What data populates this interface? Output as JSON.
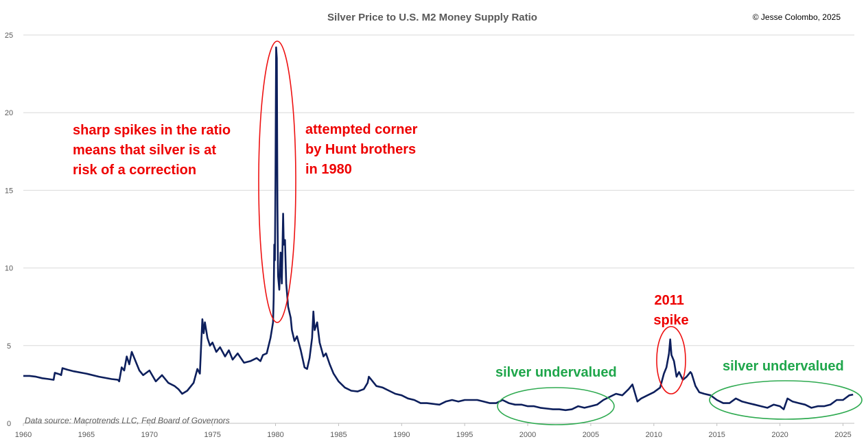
{
  "chart_data": {
    "type": "line",
    "title": "Silver Price to U.S. M2 Money Supply Ratio",
    "copyright": "© Jesse Colombo, 2025",
    "source": "Data source: Macrotrends LLC, Fed Board of Governors",
    "xlabel": "",
    "ylabel": "",
    "xlim": [
      1960,
      2025.9
    ],
    "ylim": [
      0,
      25
    ],
    "x_ticks": [
      "1960",
      "1965",
      "1970",
      "1975",
      "1980",
      "1985",
      "1990",
      "1995",
      "2000",
      "2005",
      "2010",
      "2015",
      "2020",
      "2025"
    ],
    "y_ticks": [
      "0",
      "5",
      "10",
      "15",
      "20",
      "25"
    ],
    "grid": true,
    "legend": "none",
    "line_color": "#0d1f5c",
    "series": [
      {
        "name": "Silver/M2 ratio",
        "points": [
          [
            1960.0,
            3.05
          ],
          [
            1960.5,
            3.05
          ],
          [
            1961.0,
            3.0
          ],
          [
            1961.5,
            2.9
          ],
          [
            1962.0,
            2.85
          ],
          [
            1962.4,
            2.8
          ],
          [
            1962.5,
            3.25
          ],
          [
            1962.9,
            3.15
          ],
          [
            1963.0,
            3.1
          ],
          [
            1963.1,
            3.55
          ],
          [
            1963.5,
            3.45
          ],
          [
            1964.0,
            3.35
          ],
          [
            1965.0,
            3.2
          ],
          [
            1966.0,
            3.0
          ],
          [
            1967.0,
            2.85
          ],
          [
            1967.5,
            2.8
          ],
          [
            1967.6,
            2.7
          ],
          [
            1967.8,
            3.6
          ],
          [
            1968.0,
            3.4
          ],
          [
            1968.2,
            4.3
          ],
          [
            1968.4,
            3.8
          ],
          [
            1968.6,
            4.6
          ],
          [
            1968.8,
            4.2
          ],
          [
            1969.0,
            3.8
          ],
          [
            1969.2,
            3.4
          ],
          [
            1969.5,
            3.1
          ],
          [
            1970.0,
            3.4
          ],
          [
            1970.5,
            2.7
          ],
          [
            1971.0,
            3.1
          ],
          [
            1971.5,
            2.6
          ],
          [
            1972.0,
            2.4
          ],
          [
            1972.3,
            2.2
          ],
          [
            1972.6,
            1.9
          ],
          [
            1973.0,
            2.1
          ],
          [
            1973.5,
            2.6
          ],
          [
            1973.8,
            3.5
          ],
          [
            1974.0,
            3.2
          ],
          [
            1974.1,
            5.0
          ],
          [
            1974.2,
            6.7
          ],
          [
            1974.3,
            5.8
          ],
          [
            1974.4,
            6.5
          ],
          [
            1974.6,
            5.5
          ],
          [
            1974.8,
            5.0
          ],
          [
            1975.0,
            5.2
          ],
          [
            1975.3,
            4.6
          ],
          [
            1975.6,
            4.9
          ],
          [
            1976.0,
            4.3
          ],
          [
            1976.3,
            4.7
          ],
          [
            1976.6,
            4.1
          ],
          [
            1977.0,
            4.5
          ],
          [
            1977.5,
            3.9
          ],
          [
            1978.0,
            4.0
          ],
          [
            1978.5,
            4.2
          ],
          [
            1978.8,
            4.0
          ],
          [
            1979.0,
            4.4
          ],
          [
            1979.3,
            4.5
          ],
          [
            1979.6,
            5.5
          ],
          [
            1979.8,
            6.5
          ],
          [
            1979.85,
            8.0
          ],
          [
            1979.9,
            11.5
          ],
          [
            1979.95,
            10.5
          ],
          [
            1980.0,
            16.0
          ],
          [
            1980.05,
            24.2
          ],
          [
            1980.1,
            23.5
          ],
          [
            1980.15,
            14.0
          ],
          [
            1980.2,
            9.5
          ],
          [
            1980.3,
            8.6
          ],
          [
            1980.4,
            11.0
          ],
          [
            1980.5,
            9.0
          ],
          [
            1980.6,
            13.5
          ],
          [
            1980.65,
            11.5
          ],
          [
            1980.75,
            11.8
          ],
          [
            1980.85,
            9.0
          ],
          [
            1981.0,
            7.5
          ],
          [
            1981.2,
            6.8
          ],
          [
            1981.3,
            6.0
          ],
          [
            1981.5,
            5.3
          ],
          [
            1981.7,
            5.6
          ],
          [
            1982.0,
            4.7
          ],
          [
            1982.3,
            3.6
          ],
          [
            1982.5,
            3.5
          ],
          [
            1982.7,
            4.2
          ],
          [
            1982.9,
            5.5
          ],
          [
            1983.0,
            7.2
          ],
          [
            1983.1,
            6.0
          ],
          [
            1983.3,
            6.5
          ],
          [
            1983.5,
            5.2
          ],
          [
            1983.8,
            4.3
          ],
          [
            1984.0,
            4.5
          ],
          [
            1984.3,
            3.8
          ],
          [
            1984.6,
            3.2
          ],
          [
            1985.0,
            2.7
          ],
          [
            1985.5,
            2.3
          ],
          [
            1986.0,
            2.1
          ],
          [
            1986.5,
            2.05
          ],
          [
            1987.0,
            2.2
          ],
          [
            1987.3,
            2.6
          ],
          [
            1987.4,
            3.0
          ],
          [
            1987.6,
            2.8
          ],
          [
            1988.0,
            2.4
          ],
          [
            1988.5,
            2.3
          ],
          [
            1989.0,
            2.1
          ],
          [
            1989.5,
            1.9
          ],
          [
            1990.0,
            1.8
          ],
          [
            1990.5,
            1.6
          ],
          [
            1991.0,
            1.5
          ],
          [
            1991.5,
            1.3
          ],
          [
            1992.0,
            1.3
          ],
          [
            1992.5,
            1.25
          ],
          [
            1993.0,
            1.2
          ],
          [
            1993.5,
            1.4
          ],
          [
            1994.0,
            1.5
          ],
          [
            1994.5,
            1.4
          ],
          [
            1995.0,
            1.5
          ],
          [
            1995.5,
            1.5
          ],
          [
            1996.0,
            1.5
          ],
          [
            1996.5,
            1.4
          ],
          [
            1997.0,
            1.3
          ],
          [
            1997.5,
            1.3
          ],
          [
            1998.0,
            1.5
          ],
          [
            1998.5,
            1.3
          ],
          [
            1999.0,
            1.2
          ],
          [
            1999.5,
            1.2
          ],
          [
            2000.0,
            1.1
          ],
          [
            2000.5,
            1.1
          ],
          [
            2001.0,
            1.0
          ],
          [
            2001.5,
            0.95
          ],
          [
            2002.0,
            0.9
          ],
          [
            2002.5,
            0.9
          ],
          [
            2003.0,
            0.85
          ],
          [
            2003.5,
            0.9
          ],
          [
            2004.0,
            1.1
          ],
          [
            2004.5,
            1.0
          ],
          [
            2005.0,
            1.1
          ],
          [
            2005.5,
            1.2
          ],
          [
            2006.0,
            1.5
          ],
          [
            2006.5,
            1.7
          ],
          [
            2007.0,
            1.9
          ],
          [
            2007.5,
            1.8
          ],
          [
            2008.0,
            2.2
          ],
          [
            2008.3,
            2.5
          ],
          [
            2008.7,
            1.4
          ],
          [
            2009.0,
            1.6
          ],
          [
            2009.5,
            1.8
          ],
          [
            2010.0,
            2.0
          ],
          [
            2010.5,
            2.3
          ],
          [
            2010.8,
            3.2
          ],
          [
            2011.0,
            3.6
          ],
          [
            2011.2,
            4.5
          ],
          [
            2011.3,
            5.4
          ],
          [
            2011.4,
            4.4
          ],
          [
            2011.6,
            4.0
          ],
          [
            2011.7,
            3.5
          ],
          [
            2011.8,
            3.0
          ],
          [
            2012.0,
            3.3
          ],
          [
            2012.3,
            2.8
          ],
          [
            2012.6,
            3.0
          ],
          [
            2012.9,
            3.3
          ],
          [
            2013.0,
            3.2
          ],
          [
            2013.3,
            2.4
          ],
          [
            2013.6,
            2.0
          ],
          [
            2014.0,
            1.9
          ],
          [
            2014.5,
            1.8
          ],
          [
            2015.0,
            1.5
          ],
          [
            2015.5,
            1.3
          ],
          [
            2016.0,
            1.3
          ],
          [
            2016.5,
            1.6
          ],
          [
            2017.0,
            1.4
          ],
          [
            2017.5,
            1.3
          ],
          [
            2018.0,
            1.2
          ],
          [
            2018.5,
            1.1
          ],
          [
            2019.0,
            1.0
          ],
          [
            2019.5,
            1.2
          ],
          [
            2020.0,
            1.1
          ],
          [
            2020.3,
            0.9
          ],
          [
            2020.6,
            1.6
          ],
          [
            2021.0,
            1.4
          ],
          [
            2021.5,
            1.3
          ],
          [
            2022.0,
            1.2
          ],
          [
            2022.5,
            1.0
          ],
          [
            2023.0,
            1.1
          ],
          [
            2023.5,
            1.1
          ],
          [
            2024.0,
            1.2
          ],
          [
            2024.5,
            1.5
          ],
          [
            2025.0,
            1.5
          ],
          [
            2025.5,
            1.8
          ],
          [
            2025.8,
            1.85
          ]
        ]
      }
    ],
    "annotations": [
      {
        "id": "spikes-note",
        "color": "red",
        "lines": [
          "sharp spikes in the ratio",
          "means that silver is at",
          "risk of a correction"
        ]
      },
      {
        "id": "hunt-note",
        "color": "red",
        "lines": [
          "attempted corner",
          "by Hunt brothers",
          "in 1980"
        ]
      },
      {
        "id": "spike-2011-note",
        "color": "red",
        "lines": [
          "2011",
          "spike"
        ]
      },
      {
        "id": "undervalued-note-1",
        "color": "green",
        "lines": [
          "silver undervalued"
        ]
      },
      {
        "id": "undervalued-note-2",
        "color": "green",
        "lines": [
          "silver undervalued"
        ]
      }
    ]
  }
}
